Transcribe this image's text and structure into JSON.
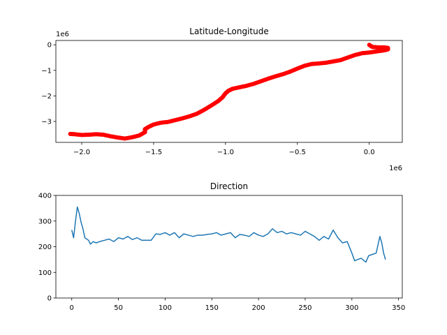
{
  "chart_data": [
    {
      "type": "scatter",
      "title": "Latitude-Longitude",
      "xlabel": "",
      "ylabel": "",
      "x_offset_label": "1e6",
      "y_offset_label": "1e6",
      "xlim": [
        -2.18,
        0.23
      ],
      "ylim": [
        -3.82,
        0.17
      ],
      "xticks": [
        -2.0,
        -1.5,
        -1.0,
        -0.5,
        0.0
      ],
      "xtick_labels": [
        "−2.0",
        "−1.5",
        "−1.0",
        "−0.5",
        "0.0"
      ],
      "yticks": [
        0,
        -1,
        -2,
        -3
      ],
      "ytick_labels": [
        "0",
        "−1",
        "−2",
        "−3"
      ],
      "grid": false,
      "marker_color": "#ff0000",
      "points": [
        [
          0.0,
          0.0
        ],
        [
          0.02,
          -0.08
        ],
        [
          0.06,
          -0.1
        ],
        [
          0.1,
          -0.1
        ],
        [
          0.13,
          -0.12
        ],
        [
          0.13,
          -0.18
        ],
        [
          0.1,
          -0.22
        ],
        [
          0.05,
          -0.26
        ],
        [
          0.0,
          -0.3
        ],
        [
          -0.05,
          -0.33
        ],
        [
          -0.1,
          -0.4
        ],
        [
          -0.15,
          -0.5
        ],
        [
          -0.2,
          -0.6
        ],
        [
          -0.25,
          -0.65
        ],
        [
          -0.3,
          -0.7
        ],
        [
          -0.35,
          -0.73
        ],
        [
          -0.4,
          -0.75
        ],
        [
          -0.45,
          -0.82
        ],
        [
          -0.5,
          -0.93
        ],
        [
          -0.55,
          -1.05
        ],
        [
          -0.6,
          -1.15
        ],
        [
          -0.65,
          -1.23
        ],
        [
          -0.7,
          -1.32
        ],
        [
          -0.75,
          -1.42
        ],
        [
          -0.8,
          -1.52
        ],
        [
          -0.85,
          -1.6
        ],
        [
          -0.9,
          -1.66
        ],
        [
          -0.95,
          -1.72
        ],
        [
          -0.98,
          -1.8
        ],
        [
          -1.0,
          -1.9
        ],
        [
          -1.02,
          -2.05
        ],
        [
          -1.05,
          -2.2
        ],
        [
          -1.1,
          -2.38
        ],
        [
          -1.15,
          -2.55
        ],
        [
          -1.2,
          -2.7
        ],
        [
          -1.25,
          -2.8
        ],
        [
          -1.3,
          -2.88
        ],
        [
          -1.35,
          -2.95
        ],
        [
          -1.4,
          -3.02
        ],
        [
          -1.45,
          -3.05
        ],
        [
          -1.5,
          -3.12
        ],
        [
          -1.53,
          -3.2
        ],
        [
          -1.56,
          -3.3
        ],
        [
          -1.56,
          -3.42
        ],
        [
          -1.6,
          -3.55
        ],
        [
          -1.65,
          -3.62
        ],
        [
          -1.7,
          -3.67
        ],
        [
          -1.75,
          -3.63
        ],
        [
          -1.8,
          -3.58
        ],
        [
          -1.85,
          -3.52
        ],
        [
          -1.9,
          -3.5
        ],
        [
          -1.95,
          -3.52
        ],
        [
          -2.0,
          -3.53
        ],
        [
          -2.05,
          -3.5
        ],
        [
          -2.08,
          -3.49
        ]
      ]
    },
    {
      "type": "line",
      "title": "Direction",
      "xlabel": "",
      "ylabel": "",
      "xlim": [
        -17,
        354
      ],
      "ylim": [
        0,
        400
      ],
      "xticks": [
        0,
        50,
        100,
        150,
        200,
        250,
        300,
        350
      ],
      "yticks": [
        0,
        100,
        200,
        300,
        400
      ],
      "grid": false,
      "line_color": "#1f77b4",
      "x": [
        0,
        2,
        4,
        6,
        8,
        10,
        12,
        14,
        16,
        18,
        20,
        23,
        26,
        30,
        35,
        40,
        45,
        50,
        55,
        60,
        65,
        70,
        75,
        80,
        85,
        90,
        95,
        100,
        105,
        110,
        115,
        120,
        125,
        130,
        135,
        140,
        145,
        150,
        155,
        160,
        165,
        170,
        175,
        180,
        185,
        190,
        195,
        200,
        205,
        210,
        215,
        220,
        225,
        230,
        235,
        240,
        245,
        250,
        255,
        260,
        265,
        270,
        275,
        280,
        285,
        290,
        295,
        300,
        303,
        306,
        310,
        315,
        318,
        322,
        326,
        330,
        332,
        334,
        336
      ],
      "values": [
        265,
        235,
        300,
        355,
        330,
        295,
        270,
        235,
        230,
        225,
        210,
        220,
        215,
        220,
        225,
        230,
        220,
        235,
        230,
        240,
        228,
        235,
        225,
        225,
        225,
        250,
        248,
        255,
        245,
        255,
        235,
        250,
        245,
        240,
        245,
        245,
        248,
        250,
        255,
        245,
        250,
        255,
        235,
        248,
        245,
        240,
        255,
        245,
        240,
        250,
        270,
        255,
        260,
        250,
        255,
        250,
        245,
        260,
        250,
        240,
        225,
        240,
        230,
        265,
        235,
        215,
        220,
        175,
        145,
        150,
        155,
        140,
        165,
        170,
        175,
        240,
        215,
        175,
        150
      ]
    }
  ]
}
